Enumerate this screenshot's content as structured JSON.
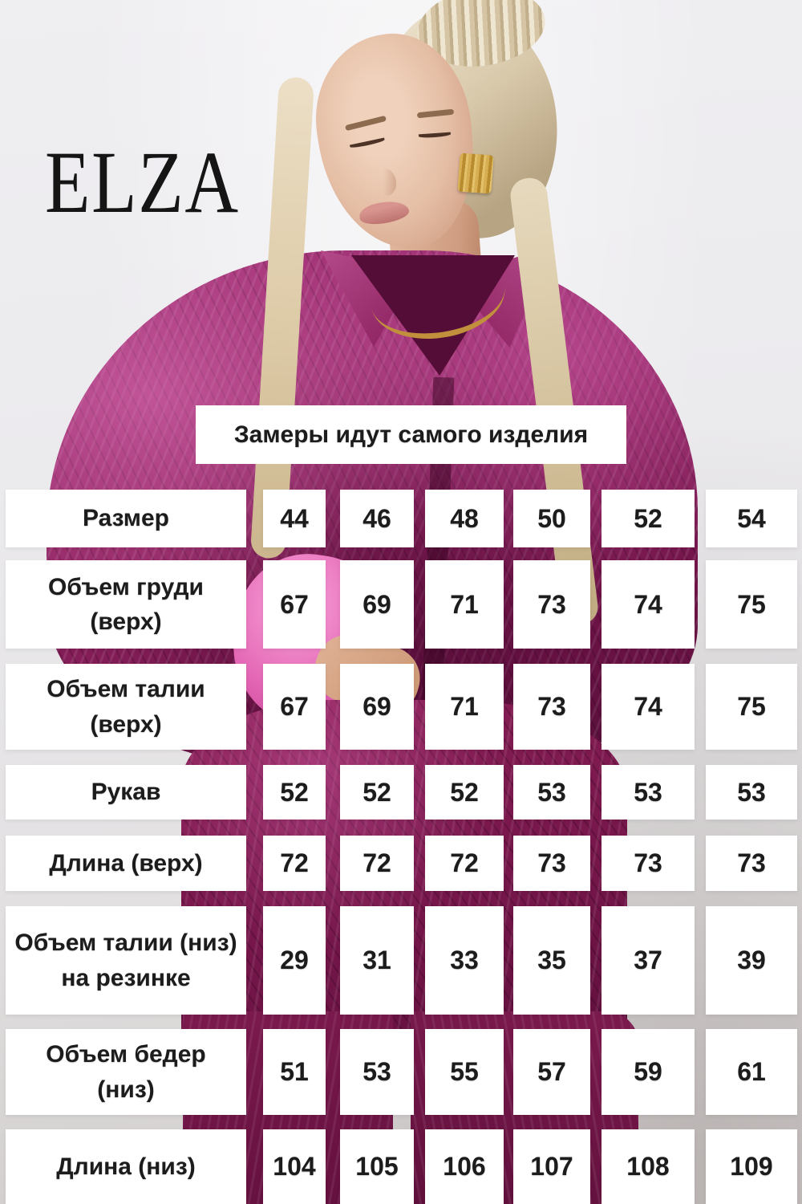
{
  "brand": {
    "logo": "ELZA"
  },
  "banner": {
    "text": "Замеры идут самого изделия"
  },
  "size_table": {
    "rows": [
      {
        "label": "Размер",
        "values": [
          "44",
          "46",
          "48",
          "50",
          "52",
          "54"
        ]
      },
      {
        "label": "Объем груди\n(верх)",
        "values": [
          "67",
          "69",
          "71",
          "73",
          "74",
          "75"
        ]
      },
      {
        "label": "Объем талии\n(верх)",
        "values": [
          "67",
          "69",
          "71",
          "73",
          "74",
          "75"
        ]
      },
      {
        "label": "Рукав",
        "values": [
          "52",
          "52",
          "52",
          "53",
          "53",
          "53"
        ]
      },
      {
        "label": "Длина (верх)",
        "values": [
          "72",
          "72",
          "72",
          "73",
          "73",
          "73"
        ]
      },
      {
        "label": "Объем талии (низ)\nна резинке",
        "values": [
          "29",
          "31",
          "33",
          "35",
          "37",
          "39"
        ]
      },
      {
        "label": "Объем бедер\n(низ)",
        "values": [
          "51",
          "53",
          "55",
          "57",
          "59",
          "61"
        ]
      },
      {
        "label": "Длина (низ)",
        "values": [
          "104",
          "105",
          "106",
          "107",
          "108",
          "109"
        ]
      }
    ]
  },
  "photo": {
    "description": "Блондинка с пучком в малиновом атласном костюме (рубашка и брюки), золотые серьга и колье"
  },
  "colors": {
    "background_gray": "#ebeaed",
    "accent_magenta": "#8e2260",
    "cell_white": "#ffffff",
    "text_dark": "#1c1c1c",
    "gold": "#c2903c"
  }
}
